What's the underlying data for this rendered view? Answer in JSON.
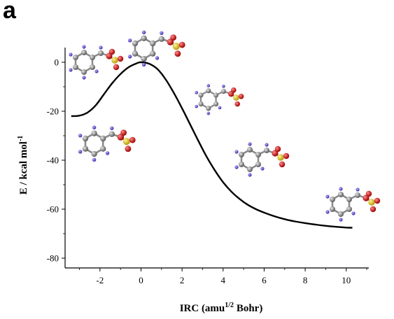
{
  "panel_label": "a",
  "chart_data": {
    "type": "line",
    "xlabel_main": "IRC (amu",
    "xlabel_sup": "1/2",
    "xlabel_tail": " Bohr)",
    "ylabel_main": "E / kcal mol",
    "ylabel_sup": "-1",
    "xlim": [
      -3.7,
      11.1
    ],
    "ylim": [
      -84,
      6
    ],
    "xticks": [
      -2,
      0,
      2,
      4,
      6,
      8,
      10
    ],
    "yticks": [
      0,
      -20,
      -40,
      -60,
      -80
    ],
    "xtick_labels": [
      "-2",
      "0",
      "2",
      "4",
      "6",
      "8",
      "10"
    ],
    "ytick_labels": [
      "0",
      "-20",
      "-40",
      "-60",
      "-80"
    ],
    "series": [
      {
        "x": [
          -3.4,
          -3.0,
          -2.6,
          -2.2,
          -1.8,
          -1.4,
          -1.0,
          -0.6,
          -0.2,
          0.0,
          0.4,
          0.8,
          1.2,
          1.6,
          2.0,
          2.4,
          2.8,
          3.2,
          3.6,
          4.0,
          4.4,
          4.8,
          5.2,
          5.6,
          6.0,
          6.5,
          7.0,
          7.5,
          8.0,
          8.5,
          9.0,
          9.5,
          10.0,
          10.3
        ],
        "y": [
          -22,
          -21.8,
          -20.5,
          -17.5,
          -13,
          -8.5,
          -4.8,
          -2.0,
          -0.4,
          0.0,
          -0.6,
          -2.8,
          -7.0,
          -12.5,
          -18.8,
          -25.5,
          -32.2,
          -38.6,
          -44.2,
          -49.0,
          -52.8,
          -55.8,
          -58.2,
          -60.0,
          -61.4,
          -62.9,
          -64.1,
          -65.0,
          -65.7,
          -66.3,
          -66.8,
          -67.2,
          -67.5,
          -67.6
        ]
      }
    ],
    "colors": {
      "line": "#000000",
      "carbon": "#8a8a8a",
      "hydrogen": "#6a5acd",
      "oxygen": "#d40000",
      "sulfur": "#e0c400"
    }
  }
}
